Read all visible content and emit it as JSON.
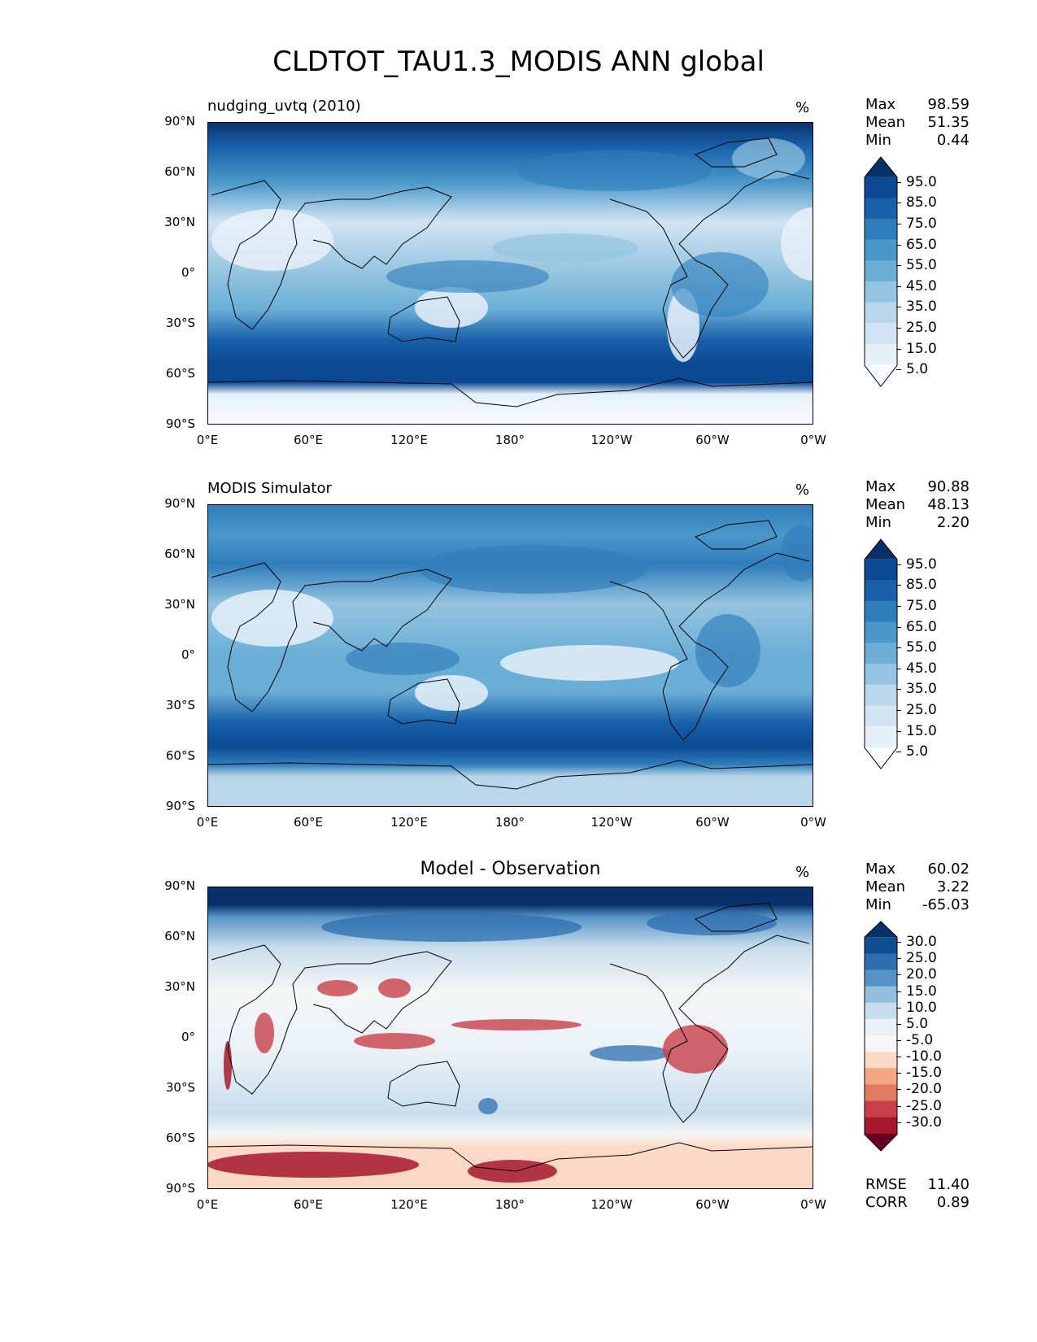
{
  "title": "CLDTOT_TAU1.3_MODIS ANN global",
  "lat_ticks": [
    "90°N",
    "60°N",
    "30°N",
    "0°",
    "30°S",
    "60°S",
    "90°S"
  ],
  "lon_ticks": [
    "0°E",
    "60°E",
    "120°E",
    "180°",
    "120°W",
    "60°W",
    "0°W"
  ],
  "panels": [
    {
      "title": "nudging_uvtq (2010)",
      "units": "%",
      "stats": [
        {
          "label": "Max",
          "value": "98.59"
        },
        {
          "label": "Mean",
          "value": "51.35"
        },
        {
          "label": "Min",
          "value": "0.44"
        }
      ],
      "colorbar": {
        "levels": [
          "95.0",
          "85.0",
          "75.0",
          "65.0",
          "55.0",
          "45.0",
          "35.0",
          "25.0",
          "15.0",
          "5.0"
        ],
        "colors": [
          "#08306b",
          "#0b4a93",
          "#1861aa",
          "#2f7ebc",
          "#4a98c9",
          "#6aaed6",
          "#94c4df",
          "#b9d6ea",
          "#d2e3f3",
          "#e6f0f9",
          "#f7fbff"
        ]
      }
    },
    {
      "title": "MODIS Simulator",
      "units": "%",
      "stats": [
        {
          "label": "Max",
          "value": "90.88"
        },
        {
          "label": "Mean",
          "value": "48.13"
        },
        {
          "label": "Min",
          "value": "2.20"
        }
      ],
      "colorbar": {
        "levels": [
          "95.0",
          "85.0",
          "75.0",
          "65.0",
          "55.0",
          "45.0",
          "35.0",
          "25.0",
          "15.0",
          "5.0"
        ],
        "colors": [
          "#08306b",
          "#0b4a93",
          "#1861aa",
          "#2f7ebc",
          "#4a98c9",
          "#6aaed6",
          "#94c4df",
          "#b9d6ea",
          "#d2e3f3",
          "#e6f0f9",
          "#f7fbff"
        ]
      }
    },
    {
      "title": "Model - Observation",
      "units": "%",
      "stats": [
        {
          "label": "Max",
          "value": "60.02"
        },
        {
          "label": "Mean",
          "value": "3.22"
        },
        {
          "label": "Min",
          "value": "-65.03"
        }
      ],
      "extra_stats": [
        {
          "label": "RMSE",
          "value": "11.40"
        },
        {
          "label": "CORR",
          "value": "0.89"
        }
      ],
      "colorbar": {
        "levels": [
          "30.0",
          "25.0",
          "20.0",
          "15.0",
          "10.0",
          "5.0",
          "-5.0",
          "-10.0",
          "-15.0",
          "-20.0",
          "-25.0",
          "-30.0"
        ],
        "colors": [
          "#08306b",
          "#0d4e8f",
          "#2d6fb0",
          "#5694c6",
          "#93bfdc",
          "#c8ddec",
          "#eaf1f6",
          "#f6f6f6",
          "#fbd9c6",
          "#f4a582",
          "#e07a62",
          "#c9404a",
          "#a6172c",
          "#67001f"
        ]
      }
    }
  ]
}
